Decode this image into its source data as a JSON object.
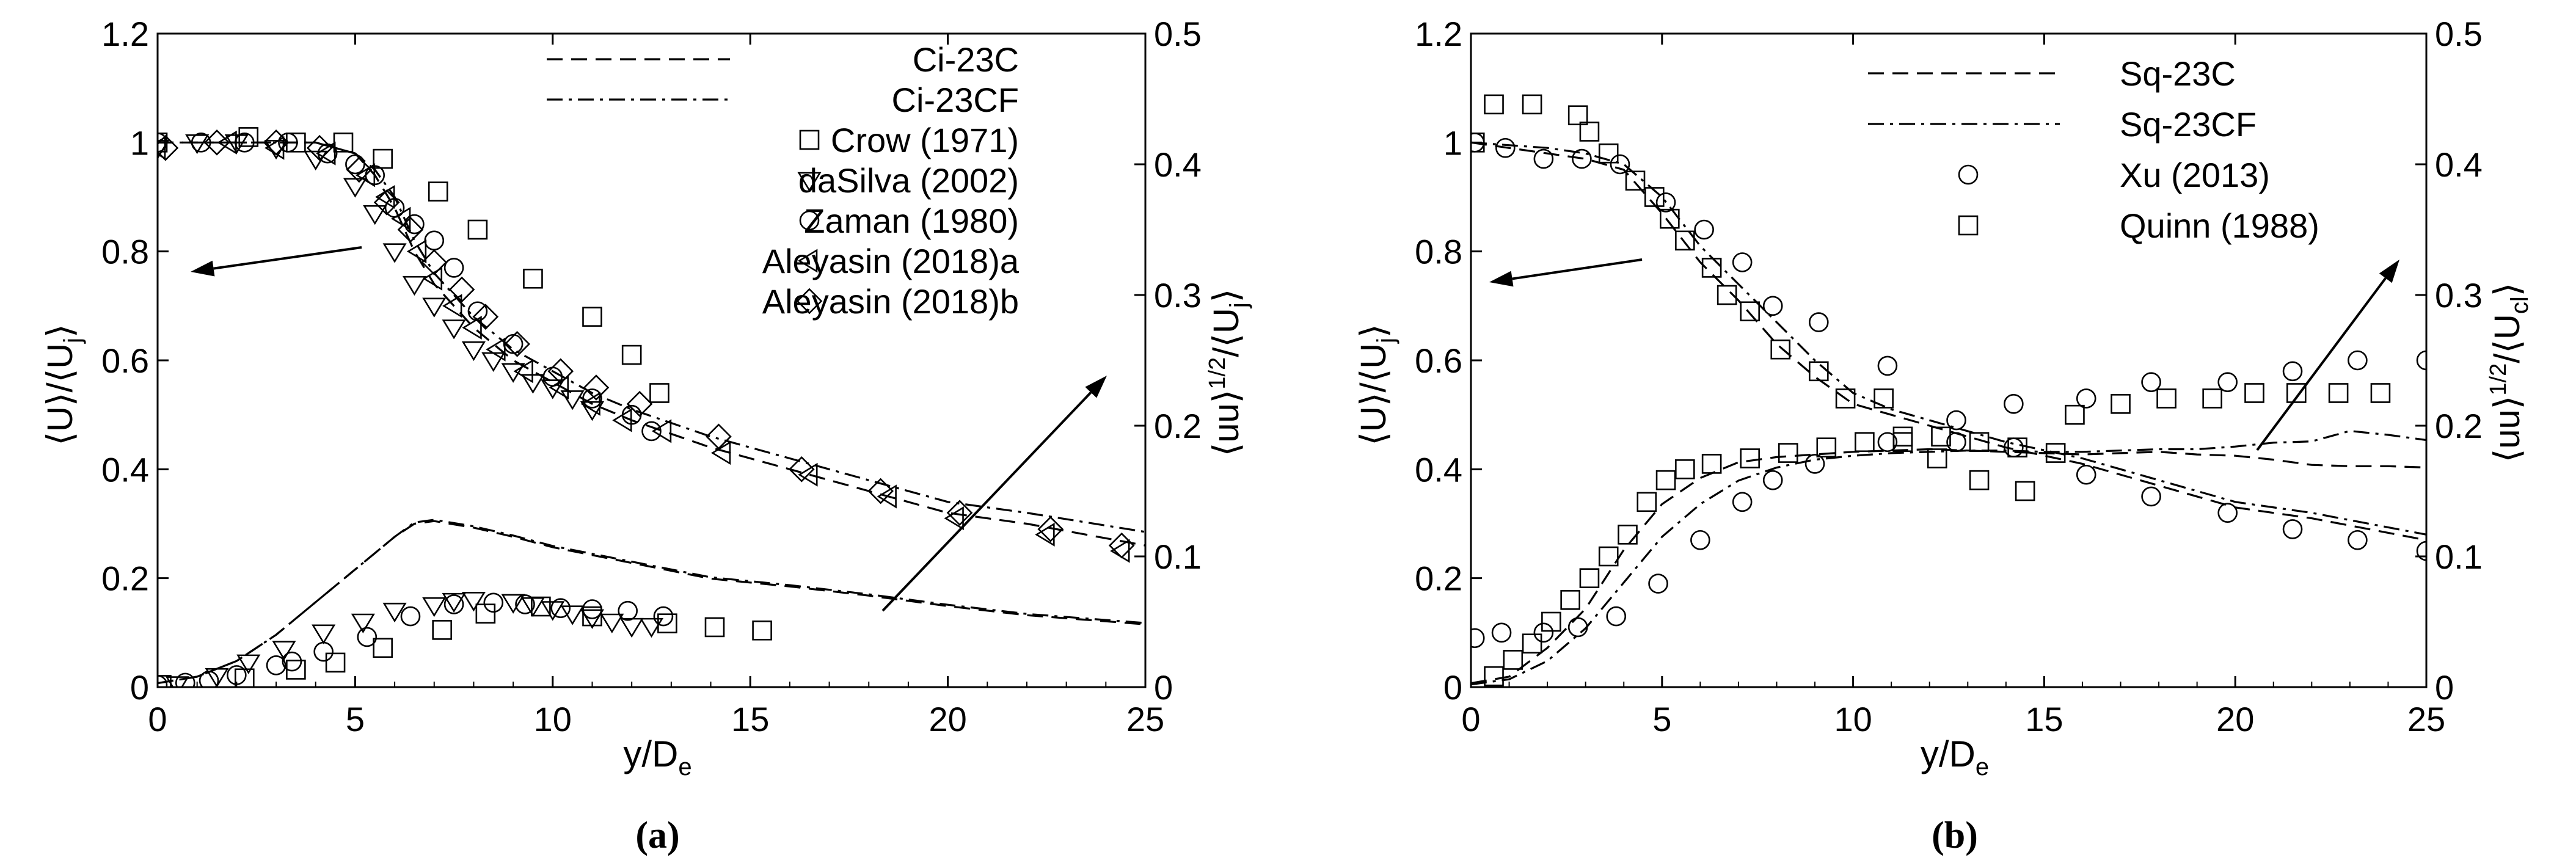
{
  "chart_data": [
    {
      "type": "line",
      "panel_label": "(a)",
      "xlabel": {
        "base": "y/D",
        "sub": "e"
      },
      "ylabel_left": {
        "p1": "⟨U⟩/⟨U",
        "sub": "j",
        "p2": "⟩"
      },
      "ylabel_right": {
        "p1": "⟨uu⟩",
        "sup": "1/2",
        "p2": "/⟨U",
        "sub": "j",
        "p3": "⟩"
      },
      "xlim": [
        0,
        25
      ],
      "ylim_left": [
        0,
        1.2
      ],
      "ylim_right": [
        0,
        0.5
      ],
      "xticks": [
        "0",
        "5",
        "10",
        "15",
        "20",
        "25"
      ],
      "yticks_left": [
        "0",
        "0.2",
        "0.4",
        "0.6",
        "0.8",
        "1",
        "1.2"
      ],
      "yticks_right": [
        "0",
        "0.1",
        "0.2",
        "0.3",
        "0.4",
        "0.5"
      ],
      "grid": false,
      "legend_position": "top-right",
      "legend": [
        {
          "label": "Ci-23C",
          "style": "dashed"
        },
        {
          "label": "Ci-23CF",
          "style": "dashdot"
        },
        {
          "label": "Crow (1971)",
          "style": "square"
        },
        {
          "label": "daSilva (2002)",
          "style": "tri-down"
        },
        {
          "label": "Zaman (1980)",
          "style": "circle"
        },
        {
          "label": "Aleyasin (2018)a",
          "style": "tri-left"
        },
        {
          "label": "Aleyasin (2018)b",
          "style": "diamond"
        }
      ],
      "series": [
        {
          "name": "Ci-23C",
          "axis": "left",
          "style": "dashed",
          "x": [
            0,
            2,
            4,
            5,
            5.5,
            6,
            6.5,
            7,
            8,
            9,
            10,
            11,
            12,
            14,
            16,
            18,
            20,
            22,
            25
          ],
          "y": [
            1.0,
            1.0,
            1.0,
            0.98,
            0.94,
            0.88,
            0.8,
            0.74,
            0.66,
            0.6,
            0.56,
            0.52,
            0.49,
            0.44,
            0.4,
            0.36,
            0.32,
            0.3,
            0.26
          ]
        },
        {
          "name": "Ci-23CF",
          "axis": "left",
          "style": "dashdot",
          "x": [
            0,
            2,
            4,
            5,
            5.5,
            6,
            6.5,
            7,
            8,
            9,
            10,
            11,
            12,
            14,
            16,
            18,
            20,
            22,
            25
          ],
          "y": [
            1.0,
            1.0,
            1.0,
            0.98,
            0.95,
            0.9,
            0.82,
            0.76,
            0.68,
            0.62,
            0.58,
            0.54,
            0.51,
            0.46,
            0.42,
            0.38,
            0.34,
            0.32,
            0.285
          ]
        },
        {
          "name": "Ci-23C",
          "axis": "right",
          "style": "dashed",
          "x": [
            0,
            1,
            2,
            3,
            4,
            5,
            6,
            6.5,
            7,
            8,
            9,
            10,
            12,
            14,
            16,
            18,
            20,
            22,
            25
          ],
          "y": [
            0.003,
            0.008,
            0.02,
            0.04,
            0.065,
            0.09,
            0.115,
            0.125,
            0.127,
            0.122,
            0.115,
            0.107,
            0.095,
            0.083,
            0.077,
            0.07,
            0.062,
            0.055,
            0.048
          ]
        },
        {
          "name": "Ci-23CF",
          "axis": "right",
          "style": "dashdot",
          "x": [
            0,
            1,
            2,
            3,
            4,
            5,
            6,
            6.5,
            7,
            8,
            9,
            10,
            12,
            14,
            16,
            18,
            20,
            22,
            25
          ],
          "y": [
            0.003,
            0.008,
            0.02,
            0.04,
            0.065,
            0.09,
            0.115,
            0.126,
            0.128,
            0.123,
            0.116,
            0.108,
            0.096,
            0.084,
            0.078,
            0.071,
            0.063,
            0.056,
            0.049
          ]
        },
        {
          "name": "Crow (1971)",
          "axis": "left",
          "style": "square",
          "x": [
            0,
            2.3,
            3.5,
            4.7,
            5.7,
            7.1,
            8.1,
            9.5,
            11,
            12,
            12.7,
            0.1,
            2.2,
            3.5,
            4.5,
            5.7,
            7.2,
            8.3,
            9.7,
            11,
            12.9,
            14.1,
            15.3
          ],
          "y": [
            1.0,
            1.01,
            1.0,
            1.0,
            0.97,
            0.91,
            0.84,
            0.75,
            0.68,
            0.61,
            0.54,
            0.004,
            0.016,
            0.032,
            0.045,
            0.072,
            0.105,
            0.135,
            0.148,
            0.13,
            0.117,
            0.11,
            0.104
          ]
        },
        {
          "name": "daSilva (2002)",
          "axis": "left",
          "style": "tri-down",
          "x": [
            0,
            1,
            2,
            3,
            4,
            5,
            5.5,
            6,
            6.5,
            7,
            7.5,
            8,
            8.5,
            9,
            9.5,
            10,
            10.5,
            11,
            0.5,
            1.5,
            2.3,
            3.2,
            4.2,
            5.2,
            6,
            7,
            7.5,
            8,
            9,
            9.5,
            10,
            10.5,
            11,
            11.5,
            12,
            12.5
          ],
          "y": [
            0.99,
            1.0,
            1.0,
            0.99,
            0.97,
            0.92,
            0.87,
            0.8,
            0.74,
            0.7,
            0.66,
            0.62,
            0.6,
            0.58,
            0.56,
            0.55,
            0.53,
            0.51,
            0.005,
            0.02,
            0.045,
            0.07,
            0.1,
            0.12,
            0.14,
            0.15,
            0.158,
            0.16,
            0.156,
            0.15,
            0.143,
            0.135,
            0.128,
            0.12,
            0.112,
            0.112
          ]
        },
        {
          "name": "Zaman (1980)",
          "axis": "left",
          "style": "circle",
          "x": [
            0,
            1.1,
            2.2,
            3.3,
            4.3,
            5,
            5.5,
            6,
            6.5,
            7,
            7.5,
            8.1,
            9,
            10,
            11,
            12,
            12.5,
            0,
            0.7,
            1.3,
            2,
            3,
            3.4,
            4.2,
            5.3,
            6.4,
            7.5,
            8.5,
            9.3,
            10.2,
            11,
            11.9,
            12.8
          ],
          "y": [
            1.0,
            1.0,
            1.0,
            1.0,
            0.98,
            0.96,
            0.94,
            0.88,
            0.85,
            0.82,
            0.77,
            0.69,
            0.63,
            0.57,
            0.53,
            0.5,
            0.47,
            0.004,
            0.008,
            0.012,
            0.022,
            0.04,
            0.047,
            0.065,
            0.092,
            0.13,
            0.152,
            0.155,
            0.152,
            0.145,
            0.143,
            0.14,
            0.13
          ]
        },
        {
          "name": "Aleyasin (2018)a",
          "axis": "left",
          "style": "tri-left",
          "x": [
            0,
            1.8,
            3,
            4.3,
            5.3,
            5.8,
            6.2,
            6.6,
            7,
            7.5,
            8,
            8.6,
            9.3,
            10.2,
            11,
            11.8,
            12.8,
            14.3,
            16.5,
            18.5,
            20.2,
            22.5,
            24.4
          ],
          "y": [
            0.99,
            1.0,
            0.99,
            0.98,
            0.94,
            0.9,
            0.86,
            0.8,
            0.75,
            0.7,
            0.66,
            0.62,
            0.58,
            0.55,
            0.52,
            0.49,
            0.47,
            0.43,
            0.39,
            0.35,
            0.31,
            0.28,
            0.25
          ]
        },
        {
          "name": "Aleyasin (2018)b",
          "axis": "left",
          "style": "diamond",
          "x": [
            0.2,
            1.5,
            3,
            4.1,
            5.1,
            5.8,
            6.4,
            7,
            7.7,
            8.3,
            9.1,
            10.2,
            11.1,
            12.2,
            14.2,
            16.3,
            18.3,
            20.3,
            22.6,
            24.4
          ],
          "y": [
            0.99,
            1.0,
            1.0,
            0.99,
            0.95,
            0.89,
            0.84,
            0.78,
            0.73,
            0.68,
            0.63,
            0.58,
            0.55,
            0.52,
            0.46,
            0.4,
            0.36,
            0.32,
            0.29,
            0.26
          ]
        }
      ]
    },
    {
      "type": "line",
      "panel_label": "(b)",
      "xlabel": {
        "base": "y/D",
        "sub": "e"
      },
      "ylabel_left": {
        "p1": "⟨U⟩/⟨U",
        "sub": "j",
        "p2": "⟩"
      },
      "ylabel_right": {
        "p1": "⟨uu⟩",
        "sup": "1/2",
        "p2": "/⟨U",
        "sub": "cl",
        "p3": "⟩"
      },
      "xlim": [
        0,
        25
      ],
      "ylim_left": [
        0,
        1.2
      ],
      "ylim_right": [
        0,
        0.5
      ],
      "xticks": [
        "0",
        "5",
        "10",
        "15",
        "20",
        "25"
      ],
      "yticks_left": [
        "0",
        "0.2",
        "0.4",
        "0.6",
        "0.8",
        "1",
        "1.2"
      ],
      "yticks_right": [
        "0",
        "0.1",
        "0.2",
        "0.3",
        "0.4",
        "0.5"
      ],
      "grid": false,
      "legend_position": "top-right",
      "legend": [
        {
          "label": "Sq-23C",
          "style": "dashed"
        },
        {
          "label": "Sq-23CF",
          "style": "dashdot"
        },
        {
          "label": "Xu (2013)",
          "style": "circle"
        },
        {
          "label": "Quinn (1988)",
          "style": "square"
        }
      ],
      "series": [
        {
          "name": "Sq-23C",
          "axis": "left",
          "style": "dashed",
          "x": [
            0,
            2,
            3,
            4,
            5,
            6,
            7,
            8,
            9,
            10,
            11,
            12,
            13,
            14,
            16,
            18,
            20,
            22,
            25
          ],
          "y": [
            1.0,
            0.98,
            0.97,
            0.95,
            0.87,
            0.78,
            0.71,
            0.63,
            0.57,
            0.52,
            0.5,
            0.48,
            0.46,
            0.44,
            0.41,
            0.37,
            0.33,
            0.31,
            0.27
          ]
        },
        {
          "name": "Sq-23CF",
          "axis": "left",
          "style": "dashdot",
          "x": [
            0,
            2,
            3,
            4,
            5,
            6,
            7,
            8,
            9,
            10,
            11,
            12,
            13,
            14,
            16,
            18,
            20,
            22,
            25
          ],
          "y": [
            1.0,
            0.99,
            0.98,
            0.96,
            0.9,
            0.81,
            0.74,
            0.67,
            0.6,
            0.54,
            0.51,
            0.49,
            0.47,
            0.45,
            0.42,
            0.38,
            0.34,
            0.32,
            0.28
          ]
        },
        {
          "name": "Sq-23C",
          "axis": "right",
          "style": "dashed",
          "x": [
            0,
            1,
            2,
            3,
            4,
            5,
            6,
            7,
            8,
            9,
            10,
            11,
            12,
            13,
            14,
            15,
            16,
            17,
            18,
            19,
            20,
            21,
            22,
            23,
            24,
            25
          ],
          "y": [
            0.003,
            0.008,
            0.03,
            0.06,
            0.105,
            0.14,
            0.16,
            0.172,
            0.176,
            0.178,
            0.18,
            0.181,
            0.182,
            0.181,
            0.18,
            0.179,
            0.178,
            0.179,
            0.18,
            0.178,
            0.177,
            0.174,
            0.17,
            0.169,
            0.169,
            0.168
          ]
        },
        {
          "name": "Sq-23CF",
          "axis": "right",
          "style": "dashdot",
          "x": [
            0,
            1,
            2,
            3,
            4,
            5,
            6,
            7,
            8,
            9,
            10,
            11,
            12,
            13,
            14,
            15,
            16,
            17,
            18,
            19,
            20,
            21,
            22,
            23,
            24,
            25
          ],
          "y": [
            0.002,
            0.006,
            0.02,
            0.045,
            0.08,
            0.115,
            0.14,
            0.158,
            0.168,
            0.174,
            0.177,
            0.179,
            0.18,
            0.181,
            0.181,
            0.18,
            0.18,
            0.181,
            0.182,
            0.182,
            0.184,
            0.187,
            0.188,
            0.196,
            0.193,
            0.189
          ]
        },
        {
          "name": "Xu (2013)",
          "axis": "left",
          "style": "circle",
          "x": [
            0.1,
            0.9,
            1.9,
            2.9,
            3.9,
            5.1,
            6.1,
            7.1,
            7.9,
            9.1,
            10.9,
            12.7,
            14.2,
            16.1,
            17.8,
            19.8,
            21.5,
            23.2,
            25,
            0.1,
            0.8,
            1.9,
            2.8,
            3.8,
            4.9,
            6,
            7.1,
            7.9,
            9,
            10.9,
            12.7,
            14.2,
            16.1,
            17.8,
            19.8,
            21.5,
            23.2,
            25
          ],
          "y": [
            1.0,
            0.99,
            0.97,
            0.97,
            0.96,
            0.89,
            0.84,
            0.78,
            0.7,
            0.67,
            0.59,
            0.49,
            0.52,
            0.53,
            0.56,
            0.56,
            0.58,
            0.6,
            0.6,
            0.09,
            0.1,
            0.1,
            0.11,
            0.13,
            0.19,
            0.27,
            0.34,
            0.38,
            0.41,
            0.45,
            0.45,
            0.44,
            0.39,
            0.35,
            0.32,
            0.29,
            0.27,
            0.25
          ]
        },
        {
          "name": "Quinn (1988)",
          "axis": "left",
          "style": "square",
          "x": [
            0.1,
            0.6,
            1.6,
            2.8,
            3.1,
            3.6,
            4.3,
            4.8,
            5.2,
            5.6,
            6.3,
            6.7,
            7.3,
            8.1,
            9.1,
            9.8,
            10.8,
            11.3,
            12.2,
            13.3,
            14.5,
            15.8,
            17,
            18.2,
            19.4,
            20.5,
            21.6,
            22.7,
            23.8,
            0.6,
            1.1,
            1.6,
            2.1,
            2.6,
            3.1,
            3.6,
            4.1,
            4.6,
            5.1,
            5.6,
            6.3,
            7.3,
            8.3,
            9.3,
            10.3,
            11.3,
            12.3,
            13.3,
            14.3,
            15.3
          ],
          "y": [
            1.0,
            1.07,
            1.07,
            1.05,
            1.02,
            0.98,
            0.93,
            0.9,
            0.86,
            0.82,
            0.77,
            0.72,
            0.69,
            0.62,
            0.58,
            0.53,
            0.53,
            0.45,
            0.42,
            0.38,
            0.36,
            0.5,
            0.52,
            0.53,
            0.53,
            0.54,
            0.54,
            0.54,
            0.54,
            0.02,
            0.05,
            0.08,
            0.12,
            0.16,
            0.2,
            0.24,
            0.28,
            0.34,
            0.38,
            0.4,
            0.41,
            0.42,
            0.43,
            0.44,
            0.45,
            0.46,
            0.46,
            0.45,
            0.44,
            0.43
          ]
        }
      ]
    }
  ]
}
